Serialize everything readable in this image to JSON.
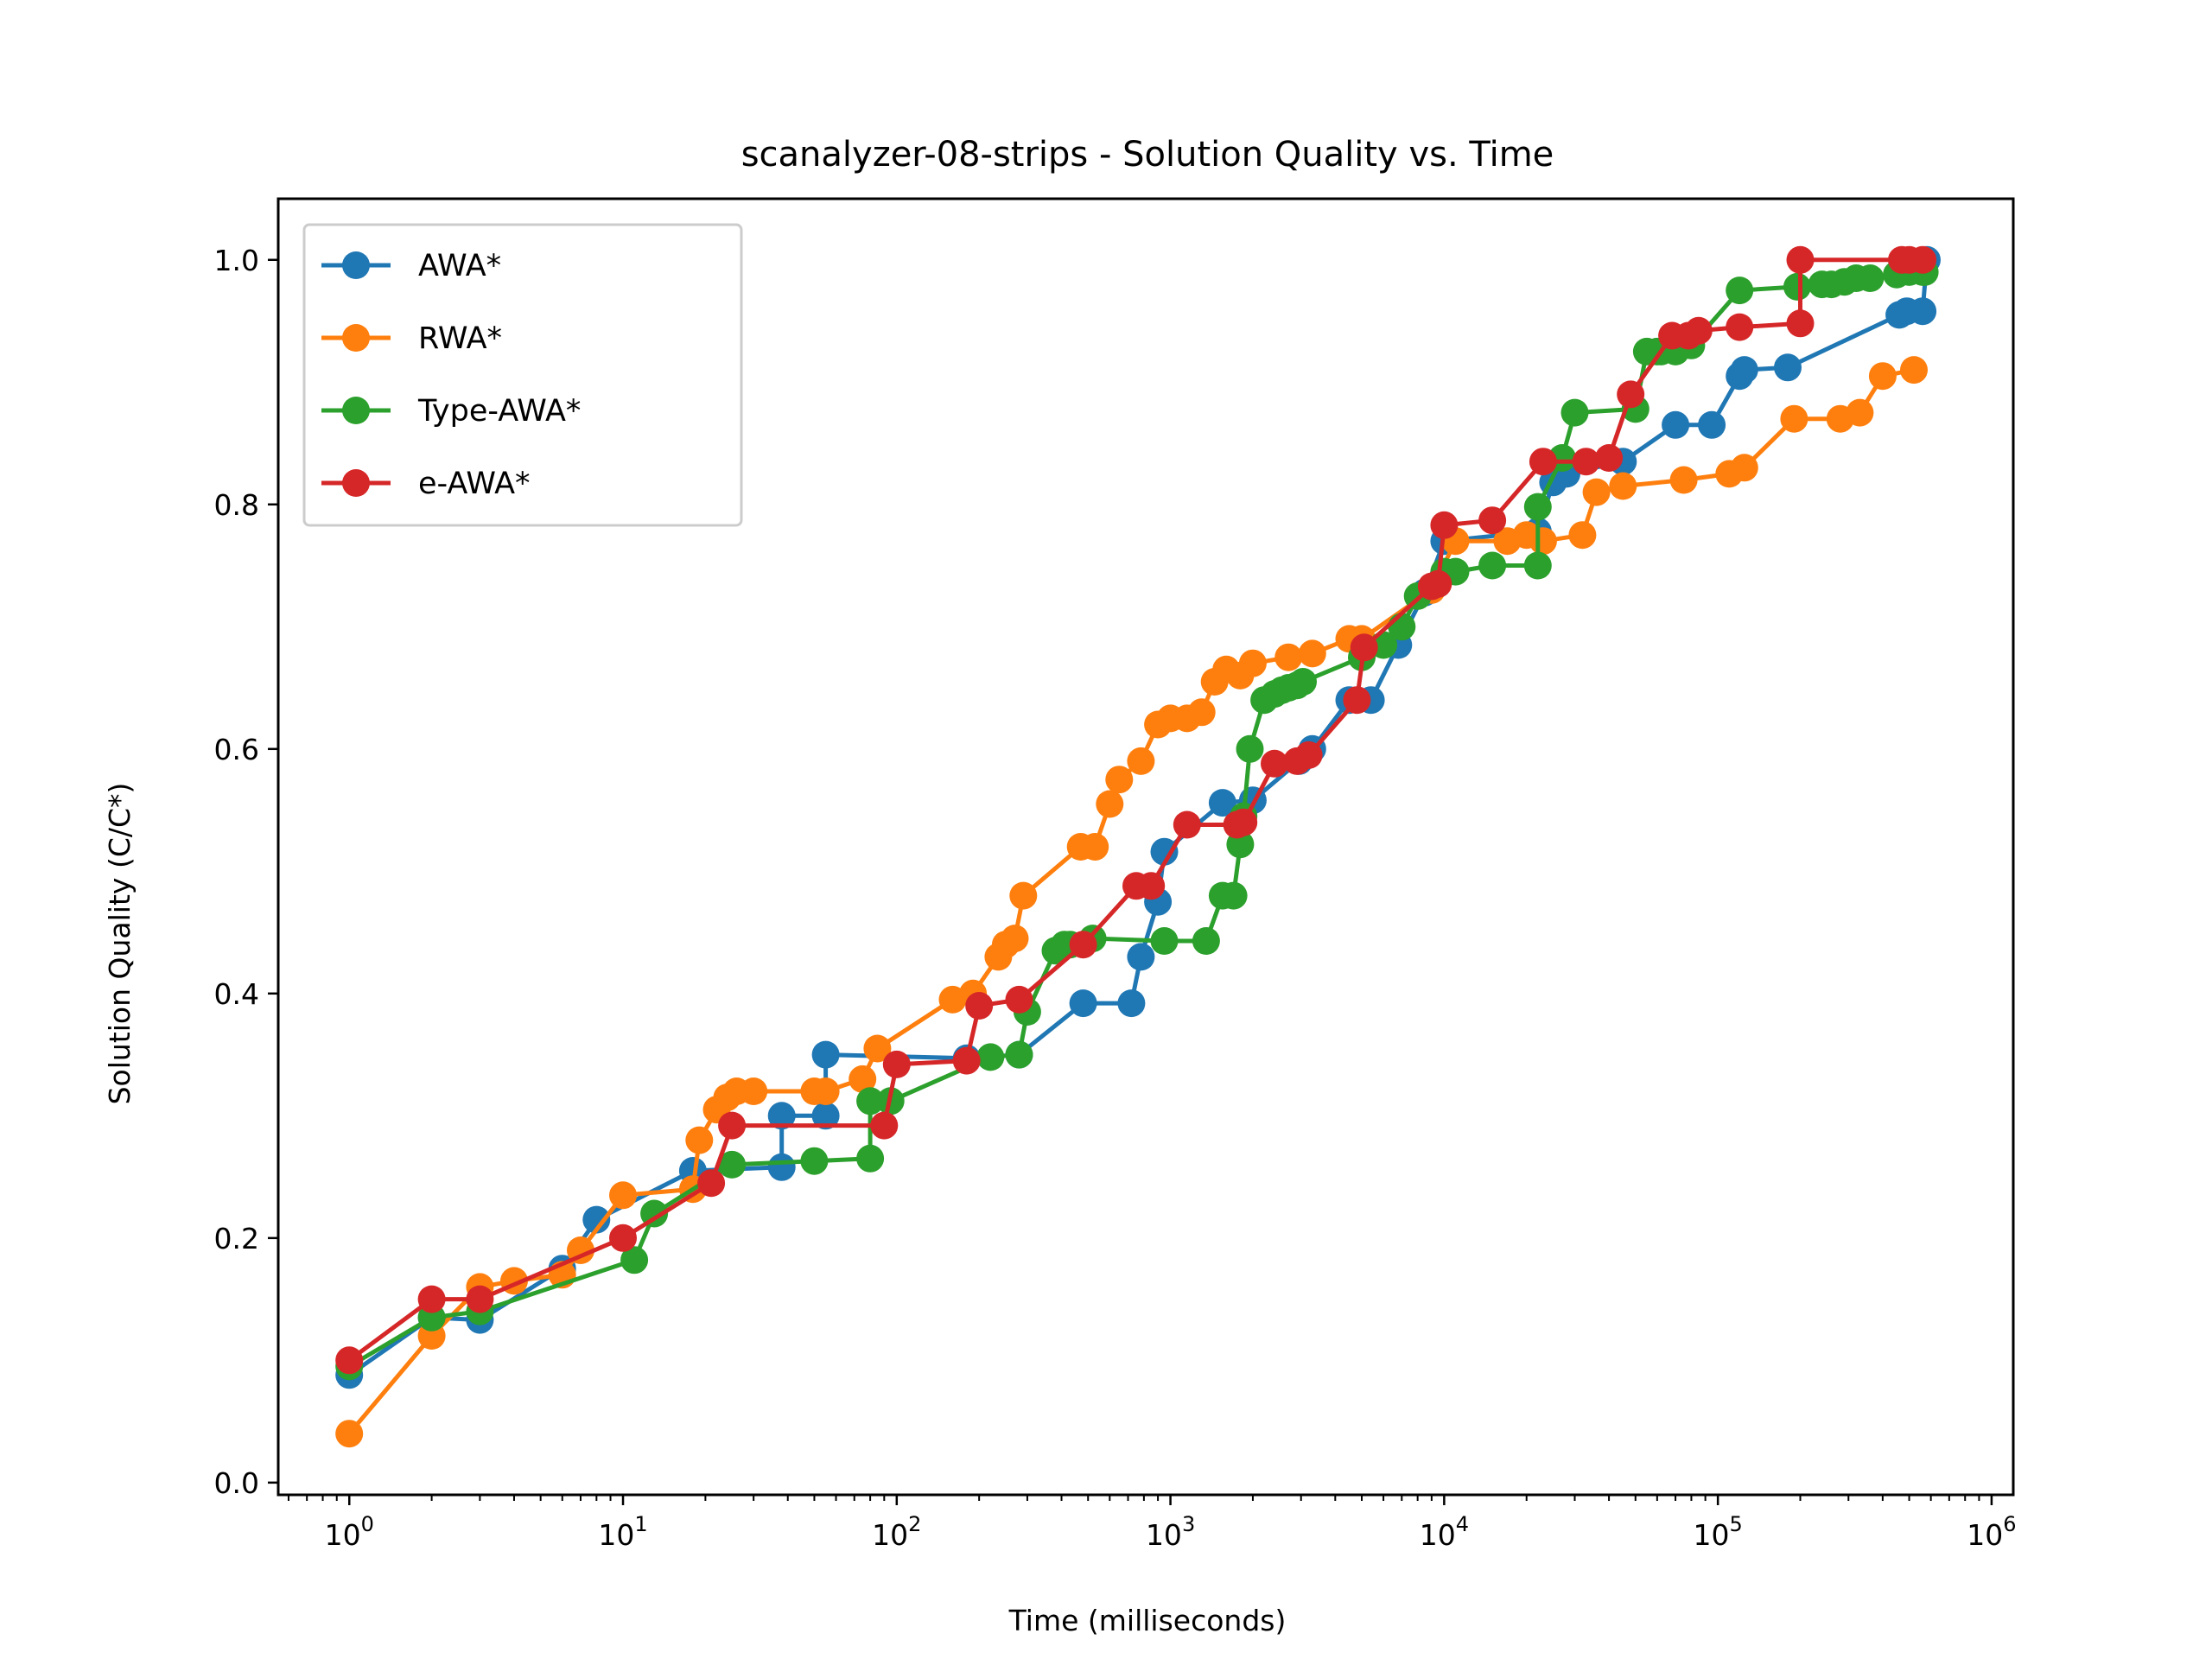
{
  "chart_data": {
    "type": "line",
    "title": "scanalyzer-08-strips - Solution Quality vs. Time",
    "xlabel": "Time (milliseconds)",
    "ylabel": "Solution Quality (C/C*)",
    "xscale": "log",
    "xlim": [
      0.55,
      1200000
    ],
    "ylim": [
      -0.01,
      1.05
    ],
    "xticks": [
      {
        "base": "10",
        "exp": "0",
        "value": 1
      },
      {
        "base": "10",
        "exp": "1",
        "value": 10
      },
      {
        "base": "10",
        "exp": "2",
        "value": 100
      },
      {
        "base": "10",
        "exp": "3",
        "value": 1000
      },
      {
        "base": "10",
        "exp": "4",
        "value": 10000
      },
      {
        "base": "10",
        "exp": "5",
        "value": 100000
      },
      {
        "base": "10",
        "exp": "6",
        "value": 1000000
      }
    ],
    "yticks": [
      {
        "label": "0.0",
        "value": 0.0
      },
      {
        "label": "0.2",
        "value": 0.2
      },
      {
        "label": "0.4",
        "value": 0.4
      },
      {
        "label": "0.6",
        "value": 0.6
      },
      {
        "label": "0.8",
        "value": 0.8
      },
      {
        "label": "1.0",
        "value": 1.0
      }
    ],
    "legend_position": "upper-left",
    "grid": false,
    "series": [
      {
        "name": "AWA*",
        "color": "#1f77b4",
        "x": [
          1,
          2,
          3,
          6,
          8,
          18,
          38,
          38,
          55,
          55,
          180,
          280,
          480,
          720,
          780,
          900,
          950,
          1550,
          2000,
          2950,
          3300,
          4500,
          5400,
          6800,
          8500,
          10000,
          22000,
          25000,
          28000,
          45000,
          70000,
          95000,
          120000,
          125000,
          180000,
          460000,
          490000,
          560000,
          580000
        ],
        "y": [
          0.088,
          0.135,
          0.133,
          0.175,
          0.215,
          0.255,
          0.258,
          0.3,
          0.3,
          0.35,
          0.347,
          0.35,
          0.392,
          0.392,
          0.43,
          0.475,
          0.516,
          0.556,
          0.558,
          0.59,
          0.6,
          0.64,
          0.64,
          0.685,
          0.728,
          0.77,
          0.778,
          0.818,
          0.825,
          0.835,
          0.865,
          0.865,
          0.905,
          0.91,
          0.912,
          0.955,
          0.958,
          0.958,
          1.0
        ]
      },
      {
        "name": "RWA*",
        "color": "#ff7f0e",
        "x": [
          1,
          2,
          3,
          4,
          6,
          7,
          10,
          18,
          19,
          22,
          24,
          26,
          30,
          50,
          55,
          75,
          85,
          160,
          190,
          235,
          250,
          270,
          290,
          470,
          530,
          600,
          650,
          780,
          900,
          1000,
          1150,
          1300,
          1450,
          1600,
          1800,
          2000,
          2700,
          3300,
          4500,
          5000,
          9000,
          11000,
          17000,
          20000,
          23000,
          32000,
          36000,
          45000,
          75000,
          110000,
          125000,
          190000,
          280000,
          330000,
          400000,
          520000
        ],
        "y": [
          0.04,
          0.12,
          0.16,
          0.165,
          0.17,
          0.19,
          0.235,
          0.24,
          0.28,
          0.305,
          0.315,
          0.32,
          0.32,
          0.32,
          0.32,
          0.33,
          0.355,
          0.395,
          0.4,
          0.43,
          0.44,
          0.445,
          0.48,
          0.52,
          0.52,
          0.555,
          0.575,
          0.59,
          0.62,
          0.625,
          0.625,
          0.63,
          0.655,
          0.665,
          0.66,
          0.67,
          0.675,
          0.678,
          0.69,
          0.69,
          0.73,
          0.77,
          0.77,
          0.775,
          0.77,
          0.775,
          0.81,
          0.815,
          0.82,
          0.825,
          0.83,
          0.87,
          0.87,
          0.875,
          0.905,
          0.91
        ]
      },
      {
        "name": "Type-AWA*",
        "color": "#2ca02c",
        "x": [
          1,
          2,
          3,
          11,
          13,
          25,
          50,
          80,
          80,
          95,
          220,
          280,
          300,
          380,
          410,
          430,
          520,
          950,
          1350,
          1550,
          1700,
          1800,
          1850,
          1950,
          2200,
          2400,
          2550,
          2700,
          2900,
          3050,
          5000,
          6000,
          7000,
          8000,
          10000,
          11000,
          15000,
          22000,
          22000,
          27000,
          30000,
          50000,
          55000,
          60000,
          62000,
          70000,
          80000,
          120000,
          195000,
          240000,
          260000,
          290000,
          320000,
          360000,
          450000,
          500000,
          560000,
          570000
        ],
        "y": [
          0.095,
          0.135,
          0.14,
          0.182,
          0.22,
          0.26,
          0.263,
          0.265,
          0.312,
          0.312,
          0.348,
          0.35,
          0.385,
          0.435,
          0.44,
          0.44,
          0.445,
          0.443,
          0.443,
          0.48,
          0.48,
          0.522,
          0.545,
          0.6,
          0.64,
          0.645,
          0.648,
          0.65,
          0.652,
          0.655,
          0.675,
          0.685,
          0.7,
          0.725,
          0.745,
          0.745,
          0.75,
          0.75,
          0.798,
          0.838,
          0.875,
          0.878,
          0.925,
          0.925,
          0.925,
          0.925,
          0.93,
          0.975,
          0.978,
          0.98,
          0.98,
          0.982,
          0.985,
          0.985,
          0.988,
          0.99,
          0.99,
          0.99
        ]
      },
      {
        "name": "e-AWA*",
        "color": "#d62728",
        "x": [
          1,
          2,
          3,
          10,
          21,
          25,
          90,
          100,
          180,
          200,
          280,
          480,
          750,
          850,
          1150,
          1750,
          1850,
          2400,
          2900,
          3200,
          4800,
          5100,
          9000,
          9500,
          10000,
          15000,
          23000,
          33000,
          40000,
          48000,
          68000,
          78000,
          85000,
          120000,
          200000,
          200000,
          470000,
          500000,
          560000
        ],
        "y": [
          0.1,
          0.15,
          0.15,
          0.2,
          0.245,
          0.292,
          0.292,
          0.342,
          0.345,
          0.39,
          0.395,
          0.44,
          0.488,
          0.488,
          0.538,
          0.538,
          0.54,
          0.588,
          0.59,
          0.595,
          0.64,
          0.683,
          0.733,
          0.735,
          0.783,
          0.787,
          0.835,
          0.835,
          0.838,
          0.89,
          0.938,
          0.938,
          0.942,
          0.945,
          0.948,
          1.0,
          1.0,
          1.0,
          1.0
        ]
      }
    ]
  }
}
